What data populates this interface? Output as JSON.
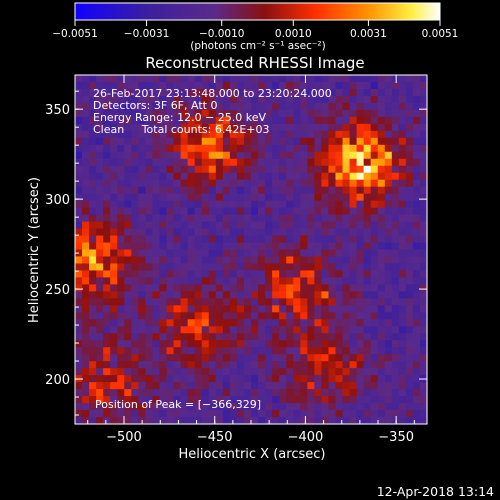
{
  "chart_data": {
    "type": "heatmap",
    "title": "Reconstructed RHESSI Image",
    "xlabel": "Heliocentric X (arcsec)",
    "ylabel": "Heliocentric Y (arcsec)",
    "xlim": [
      -527,
      -333
    ],
    "ylim": [
      175,
      369
    ],
    "x_ticks": [
      -500,
      -450,
      -400,
      -350
    ],
    "x_tick_labels": [
      "−500",
      "−450",
      "−400",
      "−350"
    ],
    "y_ticks": [
      200,
      250,
      300,
      350
    ],
    "y_tick_labels": [
      "200",
      "250",
      "300",
      "350"
    ],
    "colorbar": {
      "range": [
        -0.0051,
        0.0051
      ],
      "ticks": [
        -0.0051,
        -0.0031,
        -0.001,
        0.001,
        0.0031,
        0.0051
      ],
      "tick_labels": [
        "−0.0051",
        "−0.0031",
        "−0.0010",
        "0.0010",
        "0.0031",
        "0.0051"
      ],
      "units": "(photons cm⁻² s⁻¹ asec⁻²)",
      "colors": [
        "#1200ff",
        "#3b1f9e",
        "#5a2a8a",
        "#8a1010",
        "#ff3000",
        "#ff9000",
        "#ffee40",
        "#ffffff"
      ]
    },
    "info_lines": [
      "26-Feb-2017 23:13:48.000 to 23:20:24.000",
      "Detectors: 3F 6F, Att 0",
      "Energy Range: 12.0 − 25.0 keV",
      "Clean     Total counts: 6.42E+03"
    ],
    "peak": {
      "x": -366,
      "y": 329,
      "label": "Position of Peak = [−366,329]"
    },
    "bright_sources": [
      {
        "x": -370,
        "y": 320,
        "value": 0.0051
      },
      {
        "x": -518,
        "y": 265,
        "value": 0.004
      },
      {
        "x": -453,
        "y": 330,
        "value": 0.0034
      },
      {
        "x": -405,
        "y": 250,
        "value": 0.0028
      },
      {
        "x": -460,
        "y": 228,
        "value": 0.003
      },
      {
        "x": -510,
        "y": 200,
        "value": 0.0026
      },
      {
        "x": -390,
        "y": 205,
        "value": 0.0024
      }
    ],
    "timestamp": "12-Apr-2018 13:14"
  }
}
